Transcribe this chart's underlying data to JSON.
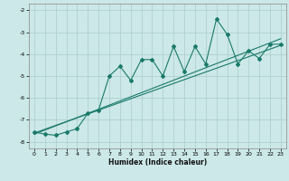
{
  "title": "",
  "xlabel": "Humidex (Indice chaleur)",
  "xlim": [
    -0.5,
    23.5
  ],
  "ylim": [
    -8.3,
    -1.7
  ],
  "yticks": [
    -8,
    -7,
    -6,
    -5,
    -4,
    -3,
    -2
  ],
  "xticks": [
    0,
    1,
    2,
    3,
    4,
    5,
    6,
    7,
    8,
    9,
    10,
    11,
    12,
    13,
    14,
    15,
    16,
    17,
    18,
    19,
    20,
    21,
    22,
    23
  ],
  "bg_color": "#cce8e8",
  "grid_color": "#aacccc",
  "line_color": "#1a7a6a",
  "line1_x": [
    0,
    23
  ],
  "line1_y": [
    -7.6,
    -3.6
  ],
  "line2_x": [
    0,
    23
  ],
  "line2_y": [
    -7.65,
    -3.3
  ],
  "data_x": [
    0,
    1,
    2,
    3,
    4,
    5,
    6,
    7,
    8,
    9,
    10,
    11,
    12,
    13,
    14,
    15,
    16,
    17,
    18,
    19,
    20,
    21,
    22,
    23
  ],
  "data_y": [
    -7.55,
    -7.65,
    -7.7,
    -7.55,
    -7.4,
    -6.7,
    -6.55,
    -5.0,
    -4.55,
    -5.2,
    -4.25,
    -4.25,
    -5.0,
    -3.65,
    -4.8,
    -3.65,
    -4.45,
    -2.4,
    -3.1,
    -4.45,
    -3.85,
    -4.2,
    -3.55,
    -3.55
  ]
}
